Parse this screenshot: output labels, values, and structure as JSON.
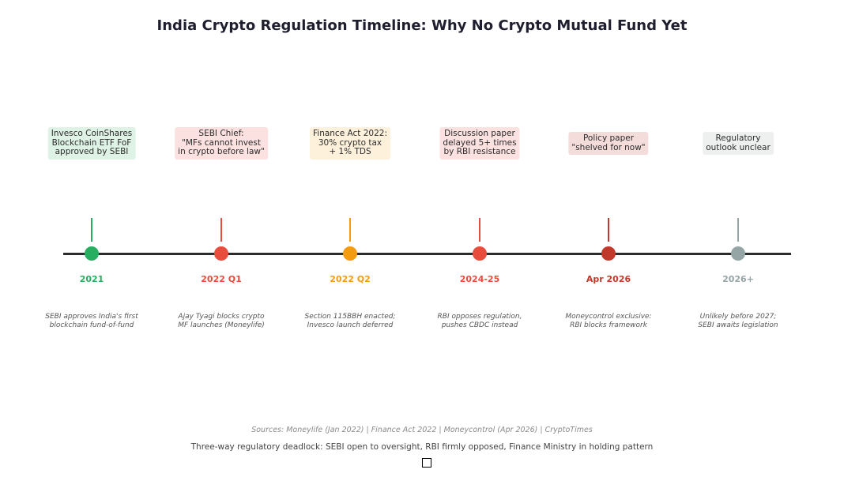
{
  "title": "India Crypto Regulation Timeline: Why No Crypto Mutual Fund Yet",
  "events": [
    {
      "date": "2021",
      "color": "#27ae60",
      "box_bg": "#dff2e6",
      "box_lines": [
        "Invesco CoinShares",
        "Blockchain ETF FoF",
        "approved by SEBI"
      ],
      "note_lines": [
        "SEBI approves India's first",
        "blockchain fund-of-fund"
      ]
    },
    {
      "date": "2022 Q1",
      "color": "#e74c3c",
      "box_bg": "#fbe2e0",
      "box_lines": [
        "SEBI Chief:",
        "\"MFs cannot invest",
        "in crypto before law\""
      ],
      "note_lines": [
        "Ajay Tyagi blocks crypto",
        "MF launches (Moneylife)"
      ]
    },
    {
      "date": "2022 Q2",
      "color": "#f39c12",
      "box_bg": "#fdf1dc",
      "box_lines": [
        "Finance Act 2022:",
        "30% crypto tax",
        "+ 1% TDS"
      ],
      "note_lines": [
        "Section 115BBH enacted;",
        "Invesco launch deferred"
      ]
    },
    {
      "date": "2024-25",
      "color": "#e74c3c",
      "box_bg": "#fbe2e0",
      "box_lines": [
        "Discussion paper",
        "delayed 5+ times",
        "by RBI resistance"
      ],
      "note_lines": [
        "RBI opposes regulation,",
        "pushes CBDC instead"
      ]
    },
    {
      "date": "Apr 2026",
      "color": "#c0392b",
      "box_bg": "#f4dcda",
      "box_lines": [
        "Policy paper",
        "\"shelved for now\""
      ],
      "note_lines": [
        "Moneycontrol exclusive:",
        "RBI blocks framework"
      ]
    },
    {
      "date": "2026+",
      "color": "#95a5a6",
      "box_bg": "#eef0f0",
      "box_lines": [
        "Regulatory",
        "outlook unclear"
      ],
      "note_lines": [
        "Unlikely before 2027;",
        "SEBI awaits legislation"
      ]
    }
  ],
  "sources": "Sources: Moneylife (Jan 2022) | Finance Act 2022 | Moneycontrol (Apr 2026) | CryptoTimes",
  "caption": "Three-way regulatory deadlock: SEBI open to oversight, RBI firmly opposed, Finance Ministry in holding pattern"
}
